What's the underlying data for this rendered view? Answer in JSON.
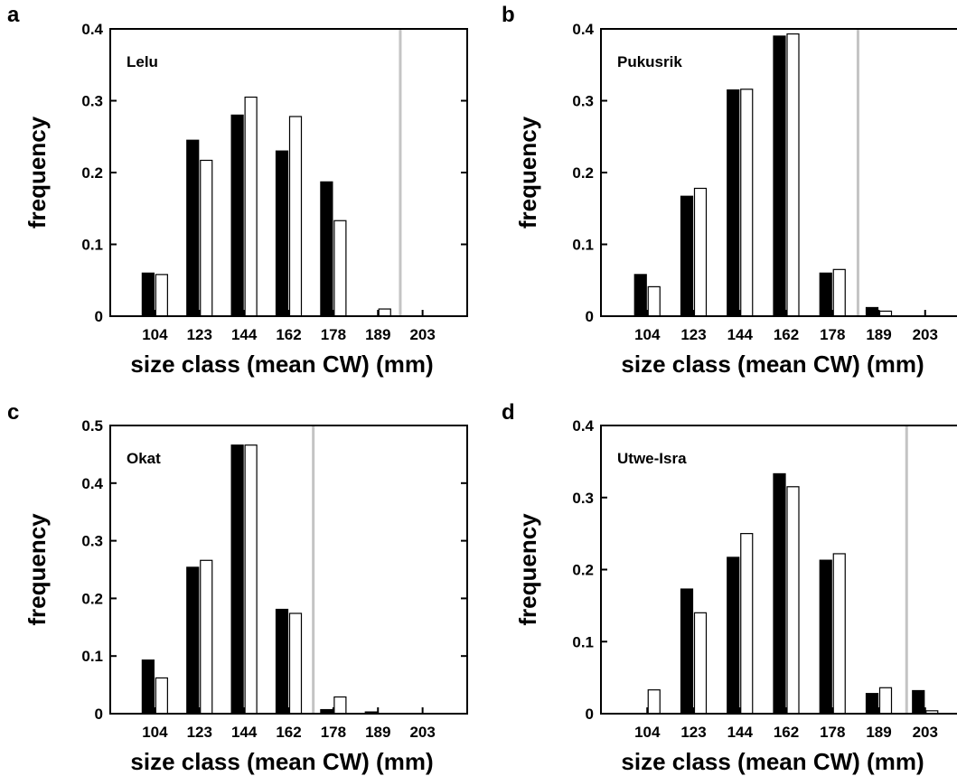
{
  "chart_data": [
    {
      "type": "bar",
      "panel": "a",
      "label": "Lelu",
      "categories": [
        "104",
        "123",
        "144",
        "162",
        "178",
        "189",
        "203"
      ],
      "series": [
        {
          "values": [
            0.06,
            0.245,
            0.28,
            0.23,
            0.187,
            0.0,
            0.0
          ],
          "color": "#000000"
        },
        {
          "values": [
            0.058,
            0.217,
            0.305,
            0.278,
            0.133,
            0.01,
            0.0
          ],
          "color": "#ffffff"
        }
      ],
      "marker_line_x": 5.5,
      "xlabel": "size class (mean CW) (mm)",
      "ylabel": "frequency",
      "ylim": [
        0,
        0.4
      ],
      "yticks": [
        "0",
        "0.1",
        "0.2",
        "0.3",
        "0.4"
      ]
    },
    {
      "type": "bar",
      "panel": "b",
      "label": "Pukusrik",
      "categories": [
        "104",
        "123",
        "144",
        "162",
        "178",
        "189",
        "203"
      ],
      "series": [
        {
          "values": [
            0.058,
            0.167,
            0.315,
            0.39,
            0.06,
            0.012,
            0.0
          ],
          "color": "#000000"
        },
        {
          "values": [
            0.041,
            0.178,
            0.316,
            0.393,
            0.065,
            0.007,
            0.0
          ],
          "color": "#ffffff"
        }
      ],
      "marker_line_x": 4.55,
      "xlabel": "size class (mean CW) (mm)",
      "ylabel": "frequency",
      "ylim": [
        0,
        0.4
      ],
      "yticks": [
        "0",
        "0.1",
        "0.2",
        "0.3",
        "0.4"
      ]
    },
    {
      "type": "bar",
      "panel": "c",
      "label": "Okat",
      "categories": [
        "104",
        "123",
        "144",
        "162",
        "178",
        "189",
        "203"
      ],
      "series": [
        {
          "values": [
            0.093,
            0.254,
            0.466,
            0.181,
            0.007,
            0.003,
            0.0
          ],
          "color": "#000000"
        },
        {
          "values": [
            0.062,
            0.266,
            0.466,
            0.174,
            0.029,
            0.0,
            0.0
          ],
          "color": "#ffffff"
        }
      ],
      "marker_line_x": 3.55,
      "xlabel": "size class (mean CW) (mm)",
      "ylabel": "frequency",
      "ylim": [
        0,
        0.5
      ],
      "yticks": [
        "0",
        "0.1",
        "0.2",
        "0.3",
        "0.4",
        "0.5"
      ]
    },
    {
      "type": "bar",
      "panel": "d",
      "label": "Utwe-Isra",
      "categories": [
        "104",
        "123",
        "144",
        "162",
        "178",
        "189",
        "203"
      ],
      "series": [
        {
          "values": [
            0.0,
            0.173,
            0.217,
            0.333,
            0.213,
            0.028,
            0.032
          ],
          "color": "#000000"
        },
        {
          "values": [
            0.033,
            0.14,
            0.25,
            0.315,
            0.222,
            0.036,
            0.004
          ],
          "color": "#ffffff"
        }
      ],
      "marker_line_x": 5.6,
      "xlabel": "size class (mean CW) (mm)",
      "ylabel": "frequency",
      "ylim": [
        0,
        0.4
      ],
      "yticks": [
        "0",
        "0.1",
        "0.2",
        "0.3",
        "0.4"
      ]
    }
  ]
}
